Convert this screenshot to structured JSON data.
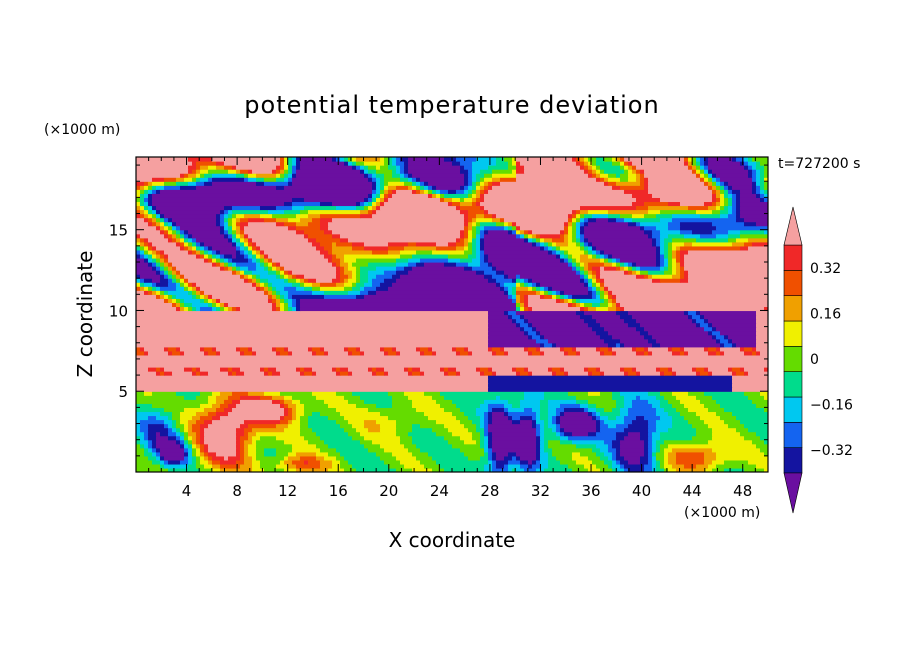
{
  "chart_data": {
    "type": "heatmap",
    "title": "potential temperature deviation",
    "xlabel": "X coordinate",
    "ylabel": "Z coordinate",
    "x_unit": "(×1000 m)",
    "y_unit": "(×1000 m)",
    "time_label": "t=727200 s",
    "xlim": [
      0,
      50
    ],
    "ylim": [
      0,
      19.5
    ],
    "x_ticks": [
      4,
      8,
      12,
      16,
      20,
      24,
      28,
      32,
      36,
      40,
      44,
      48
    ],
    "y_ticks": [
      5,
      10,
      15
    ],
    "colorbar": {
      "levels": [
        -0.4,
        -0.32,
        -0.24,
        -0.16,
        -0.08,
        0,
        0.08,
        0.16,
        0.24,
        0.32,
        0.4
      ],
      "tick_labels": [
        "0.32",
        "0.16",
        "0",
        "−0.16",
        "−0.32"
      ],
      "tick_values": [
        0.32,
        0.16,
        0,
        -0.16,
        -0.32
      ],
      "colors": [
        "#6a0fa0",
        "#1414a0",
        "#1464f0",
        "#00c8f0",
        "#00dc8c",
        "#64dc00",
        "#f0f000",
        "#f0a000",
        "#f05000",
        "#f02828",
        "#f5a0a0"
      ],
      "extend": "both"
    },
    "regions": [
      {
        "z_range": [
          15,
          19.5
        ],
        "pattern": "alternating large warm (pink) and cool (purple) blobs with thin colored bands at edges"
      },
      {
        "z_range": [
          10,
          15
        ],
        "pattern": "mixed purple and pink blobs, warm dominant on the right (x 30-50)"
      },
      {
        "z_range": [
          8,
          10
        ],
        "pattern": "warm pink layer on left, purple region x 28-48"
      },
      {
        "z_range": [
          6,
          8
        ],
        "pattern": "horizontal pink layers separated by thin red stripes"
      },
      {
        "z_range": [
          0,
          5
        ],
        "pattern": "turbulent boundary layer: warm (orange/pink) plumes left x 2-14, cool cyan/green/blue vortices right with purple cells near x 28-40"
      }
    ]
  }
}
